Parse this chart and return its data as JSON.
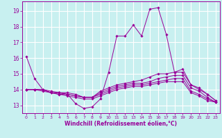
{
  "xlabel": "Windchill (Refroidissement éolien,°C)",
  "background_color": "#c8f0f0",
  "line_color": "#990099",
  "grid_color": "#ffffff",
  "xlim": [
    -0.5,
    23.5
  ],
  "ylim": [
    12.5,
    19.6
  ],
  "yticks": [
    13,
    14,
    15,
    16,
    17,
    18,
    19
  ],
  "xticks": [
    0,
    1,
    2,
    3,
    4,
    5,
    6,
    7,
    8,
    9,
    10,
    11,
    12,
    13,
    14,
    15,
    16,
    17,
    18,
    19,
    20,
    21,
    22,
    23
  ],
  "lines": [
    {
      "x": [
        0,
        1,
        2,
        3,
        4,
        5,
        6,
        7,
        8,
        9,
        10,
        11,
        12,
        13,
        14,
        15,
        16,
        17,
        18,
        19,
        20,
        21,
        22,
        23
      ],
      "y": [
        16.1,
        14.7,
        14.0,
        13.9,
        13.8,
        13.7,
        13.1,
        12.8,
        12.9,
        13.4,
        15.1,
        17.4,
        17.4,
        18.1,
        17.4,
        19.1,
        19.2,
        17.5,
        15.1,
        15.3,
        14.3,
        14.0,
        13.7,
        13.3
      ]
    },
    {
      "x": [
        0,
        1,
        2,
        3,
        4,
        5,
        6,
        7,
        8,
        9,
        10,
        11,
        12,
        13,
        14,
        15,
        16,
        17,
        18,
        19,
        20,
        21,
        22,
        23
      ],
      "y": [
        14.0,
        14.0,
        14.0,
        13.8,
        13.8,
        13.8,
        13.7,
        13.5,
        13.5,
        13.9,
        14.1,
        14.3,
        14.4,
        14.5,
        14.6,
        14.8,
        15.0,
        15.0,
        15.1,
        15.1,
        14.3,
        14.1,
        13.7,
        13.3
      ]
    },
    {
      "x": [
        0,
        1,
        2,
        3,
        4,
        5,
        6,
        7,
        8,
        9,
        10,
        11,
        12,
        13,
        14,
        15,
        16,
        17,
        18,
        19,
        20,
        21,
        22,
        23
      ],
      "y": [
        14.0,
        14.0,
        14.0,
        13.8,
        13.8,
        13.7,
        13.6,
        13.5,
        13.5,
        13.8,
        14.0,
        14.2,
        14.3,
        14.4,
        14.4,
        14.5,
        14.7,
        14.8,
        14.9,
        14.9,
        14.1,
        13.9,
        13.5,
        13.2
      ]
    },
    {
      "x": [
        0,
        1,
        2,
        3,
        4,
        5,
        6,
        7,
        8,
        9,
        10,
        11,
        12,
        13,
        14,
        15,
        16,
        17,
        18,
        19,
        20,
        21,
        22,
        23
      ],
      "y": [
        14.0,
        14.0,
        14.0,
        13.8,
        13.7,
        13.7,
        13.6,
        13.5,
        13.5,
        13.7,
        13.9,
        14.1,
        14.2,
        14.3,
        14.3,
        14.4,
        14.5,
        14.6,
        14.7,
        14.7,
        13.9,
        13.7,
        13.4,
        13.2
      ]
    },
    {
      "x": [
        0,
        1,
        2,
        3,
        4,
        5,
        6,
        7,
        8,
        9,
        10,
        11,
        12,
        13,
        14,
        15,
        16,
        17,
        18,
        19,
        20,
        21,
        22,
        23
      ],
      "y": [
        14.0,
        14.0,
        13.9,
        13.8,
        13.7,
        13.6,
        13.5,
        13.4,
        13.4,
        13.6,
        13.8,
        14.0,
        14.1,
        14.2,
        14.2,
        14.3,
        14.4,
        14.5,
        14.5,
        14.5,
        13.8,
        13.6,
        13.3,
        13.2
      ]
    }
  ]
}
